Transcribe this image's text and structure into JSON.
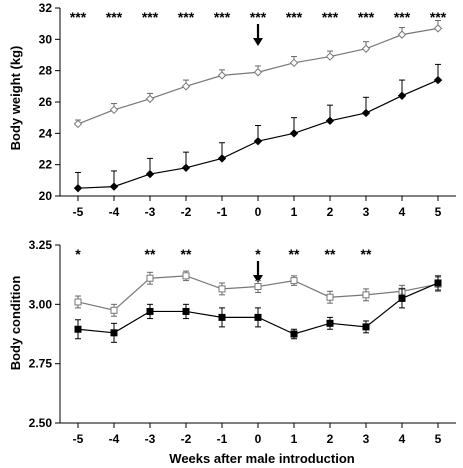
{
  "chart_data": [
    {
      "type": "line",
      "ylabel": "Body weight (kg)",
      "xlabel": "",
      "x": [
        -5,
        -4,
        -3,
        -2,
        -1,
        0,
        1,
        2,
        3,
        4,
        5
      ],
      "x_tick_labels": [
        "-5",
        "-4",
        "-3",
        "-2",
        "-1",
        "0",
        "1",
        "2",
        "3",
        "4",
        "5"
      ],
      "ylim": [
        20,
        32
      ],
      "y_ticks": [
        20,
        22,
        24,
        26,
        28,
        30,
        32
      ],
      "series": [
        {
          "marker": "open-diamond",
          "color": "#808080",
          "values": [
            24.6,
            25.5,
            26.2,
            27.0,
            27.7,
            27.9,
            28.5,
            28.9,
            29.4,
            30.3,
            30.7
          ],
          "error": [
            0.25,
            0.4,
            0.35,
            0.4,
            0.35,
            0.4,
            0.4,
            0.35,
            0.45,
            0.45,
            0.5
          ]
        },
        {
          "marker": "filled-diamond",
          "color": "#000000",
          "values": [
            20.5,
            20.6,
            21.4,
            21.8,
            22.4,
            23.5,
            24.0,
            24.8,
            25.3,
            26.4,
            27.4
          ],
          "error": [
            1.0,
            1.0,
            1.0,
            1.0,
            1.0,
            1.0,
            1.0,
            1.0,
            1.0,
            1.0,
            1.0
          ]
        }
      ],
      "significance": [
        "***",
        "***",
        "***",
        "***",
        "***",
        "***",
        "***",
        "***",
        "***",
        "***",
        "***"
      ],
      "arrow_at": 0
    },
    {
      "type": "line",
      "ylabel": "Body condition",
      "xlabel": "Weeks after male introduction",
      "x": [
        -5,
        -4,
        -3,
        -2,
        -1,
        0,
        1,
        2,
        3,
        4,
        5
      ],
      "x_tick_labels": [
        "-5",
        "-4",
        "-3",
        "-2",
        "-1",
        "0",
        "1",
        "2",
        "3",
        "4",
        "5"
      ],
      "ylim": [
        2.5,
        3.25
      ],
      "y_ticks": [
        "2.50",
        "2.75",
        "3.00",
        "3.25"
      ],
      "series": [
        {
          "marker": "open-square",
          "color": "#808080",
          "values": [
            3.01,
            2.975,
            3.11,
            3.12,
            3.065,
            3.075,
            3.1,
            3.03,
            3.04,
            3.055,
            3.085
          ],
          "error": [
            0.025,
            0.025,
            0.025,
            0.02,
            0.025,
            0.025,
            0.02,
            0.025,
            0.025,
            0.025,
            0.03
          ]
        },
        {
          "marker": "filled-square",
          "color": "#000000",
          "values": [
            2.895,
            2.88,
            2.97,
            2.97,
            2.945,
            2.945,
            2.875,
            2.92,
            2.905,
            3.025,
            3.09
          ],
          "error": [
            0.04,
            0.04,
            0.03,
            0.03,
            0.04,
            0.04,
            0.02,
            0.025,
            0.025,
            0.04,
            0.03
          ]
        }
      ],
      "significance": [
        "*",
        "",
        "**",
        "**",
        "",
        "*",
        "**",
        "**",
        "**",
        "",
        ""
      ],
      "arrow_at": 0
    }
  ]
}
